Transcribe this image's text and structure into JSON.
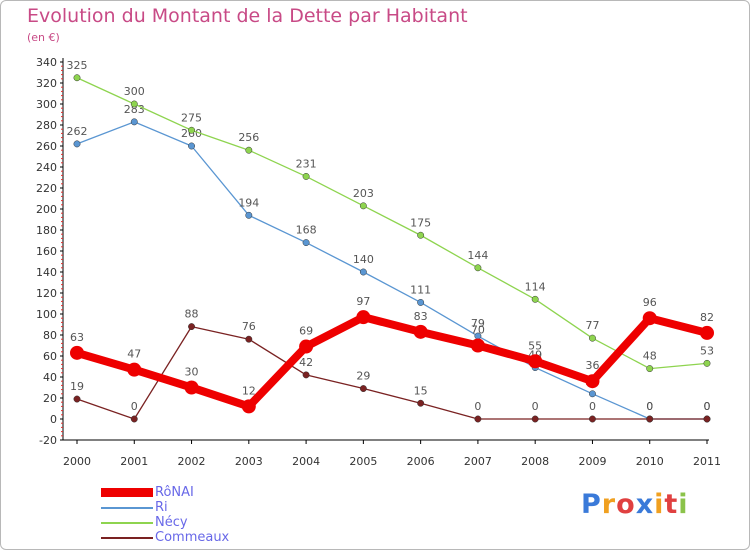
{
  "chart_data": {
    "type": "line",
    "title": "Evolution du Montant de la Dette par Habitant",
    "subtitle": "(en €)",
    "xlabel": "",
    "ylabel": "",
    "ylim": [
      -20,
      340
    ],
    "yticks": [
      -20,
      0,
      20,
      40,
      60,
      80,
      100,
      120,
      140,
      160,
      180,
      200,
      220,
      240,
      260,
      280,
      300,
      320,
      340
    ],
    "x": [
      "2000",
      "2001",
      "2002",
      "2003",
      "2004",
      "2005",
      "2006",
      "2007",
      "2008",
      "2009",
      "2010",
      "2011"
    ],
    "grid": false,
    "legend_position": "bottom-left",
    "series": [
      {
        "name": "RôNAI",
        "color": "#ee0000",
        "emphasis": true,
        "values": [
          63,
          47,
          30,
          12,
          69,
          97,
          83,
          70,
          55,
          36,
          96,
          82
        ]
      },
      {
        "name": "Ri",
        "color": "#5a96d2",
        "emphasis": false,
        "values": [
          262,
          283,
          260,
          194,
          168,
          140,
          111,
          79,
          49,
          24,
          0,
          0
        ]
      },
      {
        "name": "Nécy",
        "color": "#8ed44f",
        "emphasis": false,
        "values": [
          325,
          300,
          275,
          256,
          231,
          203,
          175,
          144,
          114,
          77,
          48,
          53
        ]
      },
      {
        "name": "Commeaux",
        "color": "#7a2222",
        "emphasis": false,
        "values": [
          19,
          0,
          88,
          76,
          42,
          29,
          15,
          0,
          0,
          0,
          0,
          0
        ]
      }
    ]
  },
  "logo": {
    "letters": [
      "P",
      "r",
      "o",
      "x",
      "i",
      "t",
      "i"
    ],
    "colors": [
      "#3a7ad9",
      "#f0a020",
      "#e04040",
      "#3a7ad9",
      "#f0a020",
      "#e04040",
      "#8bc34a"
    ]
  }
}
